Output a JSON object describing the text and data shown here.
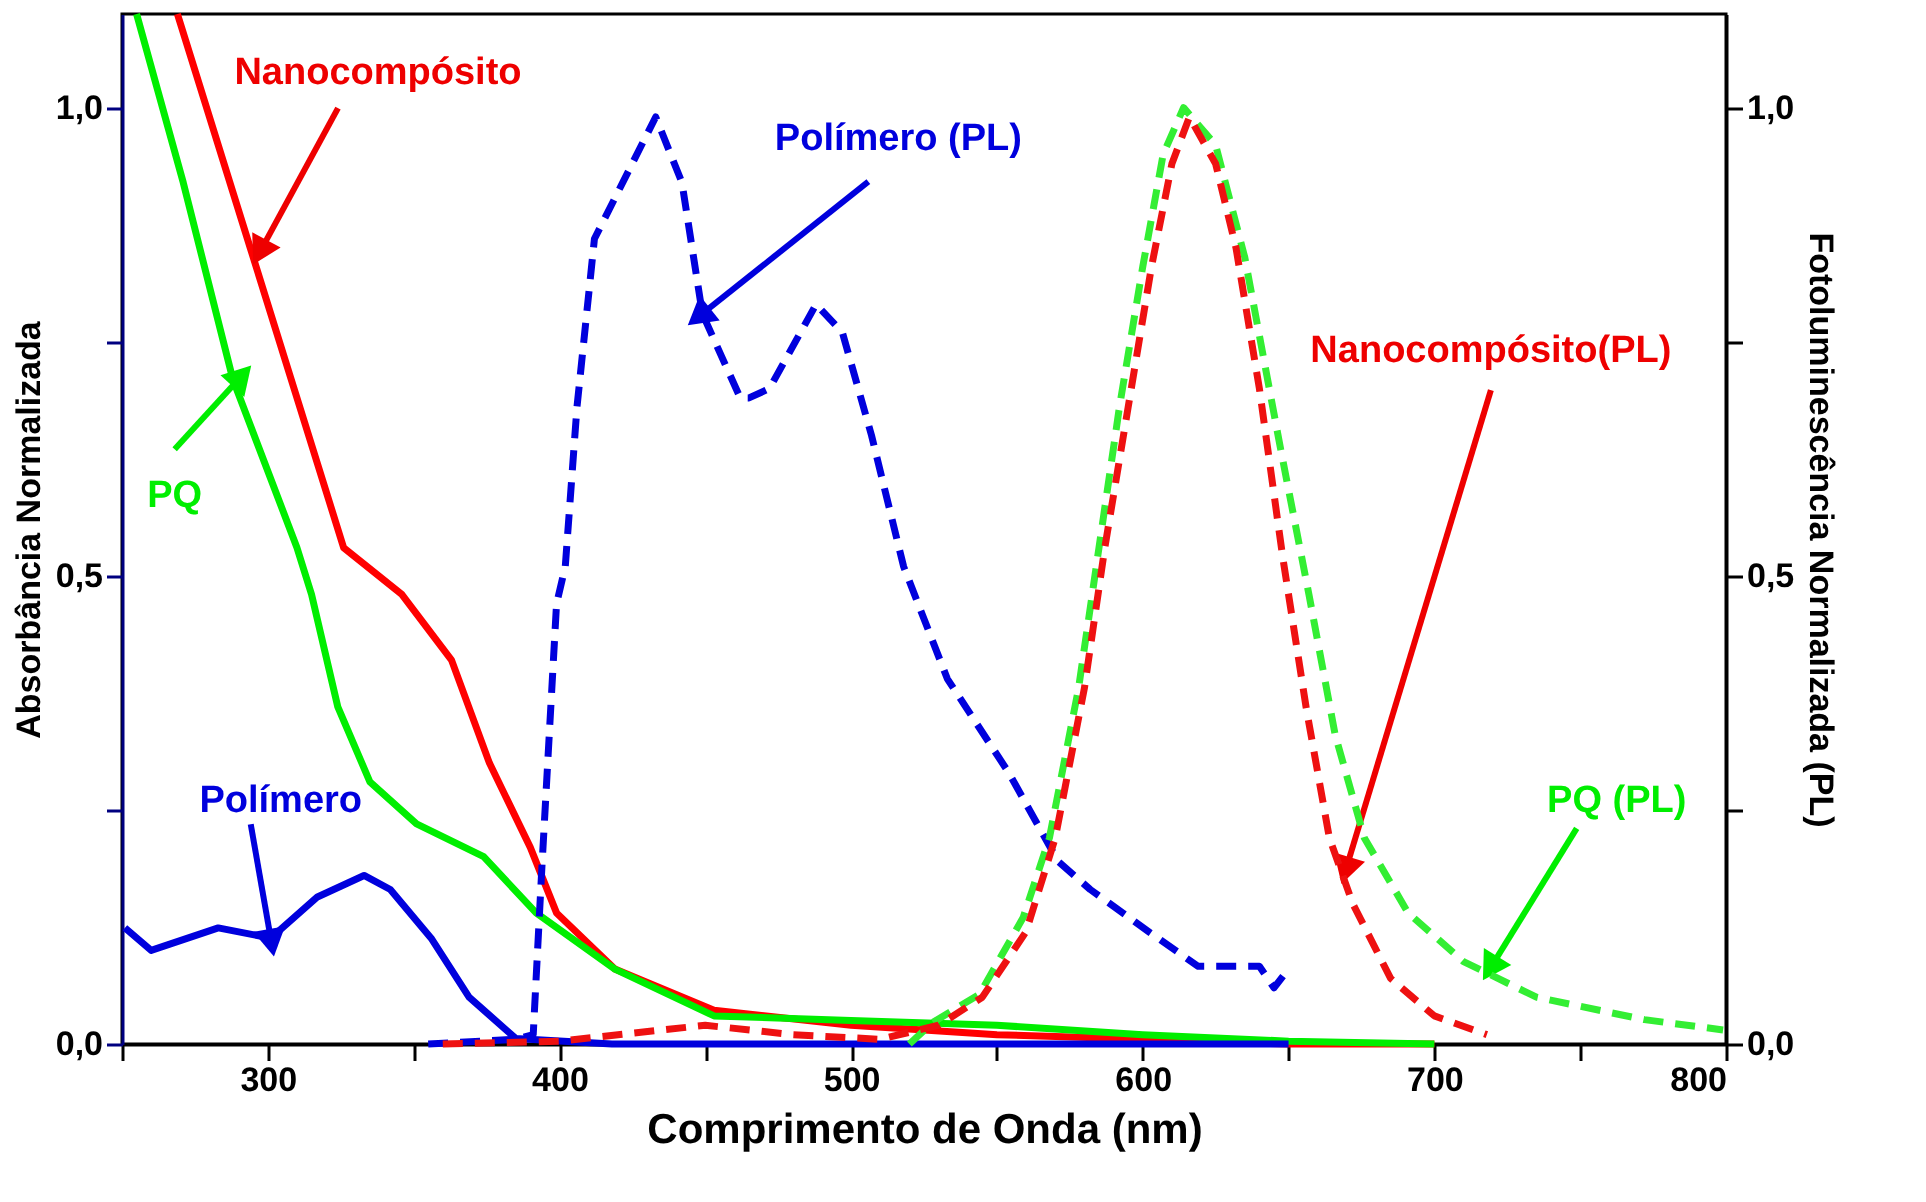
{
  "chart_data": {
    "type": "line",
    "xlabel": "Comprimento de Onda (nm)",
    "ylabel": "Absorbância Normalizada",
    "y2label": "Fotoluminescência Normalizada (PL)",
    "xlim": [
      250,
      800
    ],
    "xticks": [
      {
        "value": 250,
        "label": null
      },
      300,
      {
        "value": 350,
        "label": null
      },
      400,
      {
        "value": 450,
        "label": null
      },
      500,
      {
        "value": 550,
        "label": null
      },
      600,
      {
        "value": 650,
        "label": null
      },
      700,
      {
        "value": 750,
        "label": null
      },
      800
    ],
    "ylim": [
      0,
      1.1
    ],
    "yticks": [
      {
        "value": 0,
        "label": "0,0"
      },
      {
        "value": 0.25,
        "label": null
      },
      {
        "value": 0.5,
        "label": "0,5"
      },
      {
        "value": 0.75,
        "label": null
      },
      {
        "value": 1.0,
        "label": "1,0"
      }
    ],
    "y2lim": [
      0,
      1.1
    ],
    "y2ticks": [
      {
        "value": 0,
        "label": "0,0"
      },
      {
        "value": 0.25,
        "label": null
      },
      {
        "value": 0.5,
        "label": "0,5"
      },
      {
        "value": 0.75,
        "label": null
      },
      {
        "value": 1.0,
        "label": "1,0"
      }
    ],
    "grid": false,
    "marker": "none",
    "series": [
      {
        "color": "#ff0000",
        "line_style": "solid",
        "x": [
          269,
          294,
          308,
          326,
          346,
          363,
          376,
          390,
          399,
          419,
          453,
          500,
          550,
          600,
          650,
          700
        ],
        "values": [
          1.1,
          0.85,
          0.71,
          0.53,
          0.48,
          0.41,
          0.3,
          0.21,
          0.14,
          0.08,
          0.036,
          0.02,
          0.01,
          0.005,
          0.0,
          0.0
        ]
      },
      {
        "color": "#00ee00",
        "line_style": "solid",
        "x": [
          255,
          271,
          288,
          310,
          315,
          324,
          335,
          351,
          374,
          392,
          419,
          453,
          500,
          550,
          600,
          650,
          700
        ],
        "values": [
          1.1,
          0.92,
          0.71,
          0.53,
          0.48,
          0.36,
          0.28,
          0.235,
          0.2,
          0.14,
          0.08,
          0.03,
          0.025,
          0.02,
          0.01,
          0.003,
          0.0
        ]
      },
      {
        "color": "#0000dd",
        "line_style": "solid",
        "x": [
          251,
          260,
          283,
          301,
          317,
          333,
          342,
          356,
          369,
          385,
          418,
          500,
          600,
          650
        ],
        "values": [
          0.124,
          0.1,
          0.124,
          0.113,
          0.157,
          0.18,
          0.165,
          0.113,
          0.05,
          0.006,
          0.0,
          0.0,
          0.0,
          0.0
        ]
      },
      {
        "color": "#0000dd",
        "line_style": "dashed",
        "axis": "y2",
        "x": [
          355,
          385,
          391,
          394,
          399,
          402,
          406,
          412,
          433,
          442,
          449,
          462,
          465,
          472,
          488,
          497,
          507,
          518,
          533,
          554,
          571,
          582,
          602,
          619,
          640,
          645,
          650
        ],
        "values": [
          0.0,
          0.005,
          0.01,
          0.19,
          0.47,
          0.51,
          0.68,
          0.86,
          0.99,
          0.92,
          0.78,
          0.69,
          0.69,
          0.7,
          0.79,
          0.76,
          0.65,
          0.51,
          0.39,
          0.29,
          0.195,
          0.165,
          0.12,
          0.083,
          0.083,
          0.06,
          0.08
        ]
      },
      {
        "color": "#33ee33",
        "line_style": "dashed",
        "axis": "y2",
        "x": [
          520,
          528,
          544,
          559,
          568,
          578,
          585,
          592,
          600,
          607,
          614,
          625,
          635,
          647,
          657,
          666,
          676,
          691,
          710,
          735,
          772,
          799
        ],
        "values": [
          0.0,
          0.023,
          0.053,
          0.135,
          0.22,
          0.38,
          0.53,
          0.68,
          0.83,
          0.95,
          1.0,
          0.96,
          0.84,
          0.64,
          0.48,
          0.33,
          0.22,
          0.14,
          0.088,
          0.05,
          0.026,
          0.015
        ]
      },
      {
        "color": "#ee1111",
        "line_style": "dashed",
        "axis": "y2",
        "x": [
          360,
          400,
          450,
          480,
          510,
          530,
          545,
          560,
          570,
          580,
          587,
          595,
          603,
          610,
          616,
          625,
          632,
          640,
          648,
          656,
          664,
          672,
          685,
          700,
          718
        ],
        "values": [
          0.0,
          0.003,
          0.02,
          0.01,
          0.005,
          0.02,
          0.05,
          0.12,
          0.22,
          0.38,
          0.53,
          0.68,
          0.83,
          0.94,
          0.99,
          0.94,
          0.85,
          0.7,
          0.52,
          0.36,
          0.22,
          0.15,
          0.07,
          0.03,
          0.01
        ]
      }
    ],
    "annotations": [
      {
        "text": "Nanocompósito",
        "x": 298,
        "y": 0.85
      },
      {
        "text": "PQ",
        "x": 290,
        "y": 0.71
      },
      {
        "text": "Polímero",
        "x": 301,
        "y": 0.113
      },
      {
        "text": "Polímero (PL)",
        "x": 449,
        "y": 0.78
      },
      {
        "text": "Nanocompósito(PL)",
        "x": 670,
        "y": 0.19
      },
      {
        "text": "PQ (PL)",
        "x": 720,
        "y": 0.085
      }
    ]
  }
}
